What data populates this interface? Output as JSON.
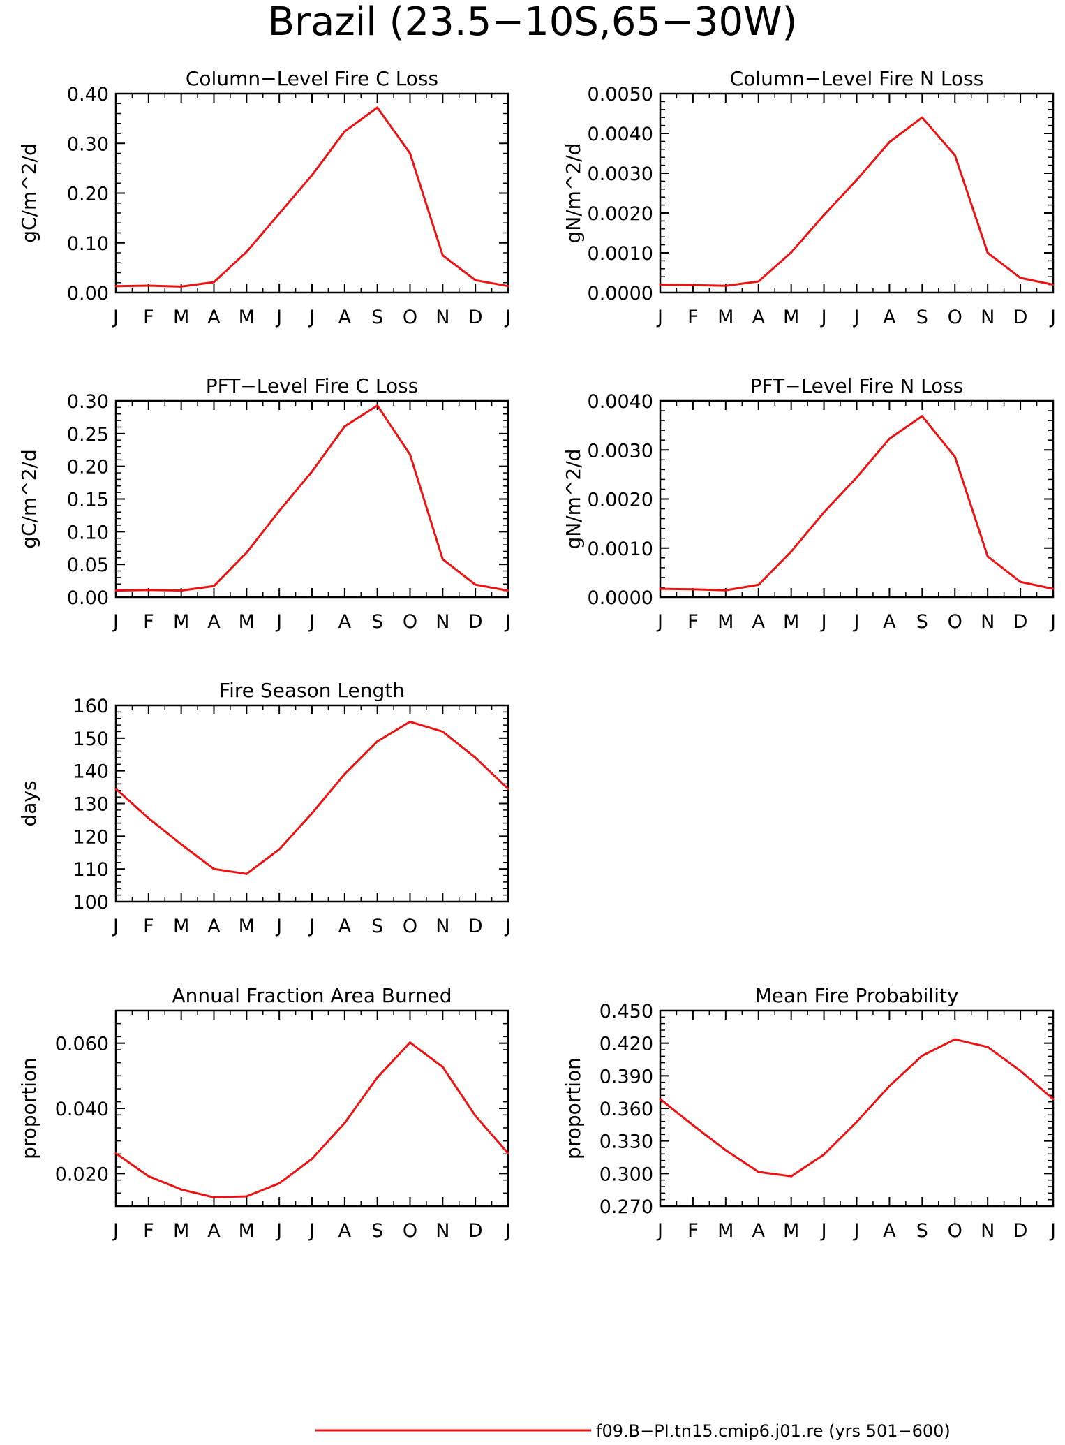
{
  "page_title": "Brazil (23.5−10S,65−30W)",
  "legend": {
    "label": "f09.B−PI.tn15.cmip6.j01.re (yrs 501−600)",
    "color": "#ee1111"
  },
  "chart_data": [
    {
      "type": "line",
      "title": "Column−Level Fire C Loss",
      "ylabel": "gC/m^2/d",
      "ylim": [
        0,
        0.4
      ],
      "yticks": [
        0,
        0.1,
        0.2,
        0.3,
        0.4
      ],
      "ytick_labels": [
        "0.00",
        "0.10",
        "0.20",
        "0.30",
        "0.40"
      ],
      "categories": [
        "J",
        "F",
        "M",
        "A",
        "M",
        "J",
        "J",
        "A",
        "S",
        "O",
        "N",
        "D",
        "J"
      ],
      "values": [
        0.013,
        0.014,
        0.012,
        0.021,
        0.082,
        0.159,
        0.236,
        0.324,
        0.372,
        0.28,
        0.075,
        0.025,
        0.013
      ]
    },
    {
      "type": "line",
      "title": "Column−Level Fire N Loss",
      "ylabel": "gN/m^2/d",
      "ylim": [
        0,
        0.005
      ],
      "yticks": [
        0,
        0.001,
        0.002,
        0.003,
        0.004,
        0.005
      ],
      "ytick_labels": [
        "0.0000",
        "0.0010",
        "0.0020",
        "0.0030",
        "0.0040",
        "0.0050"
      ],
      "categories": [
        "J",
        "F",
        "M",
        "A",
        "M",
        "J",
        "J",
        "A",
        "S",
        "O",
        "N",
        "D",
        "J"
      ],
      "values": [
        0.0002,
        0.00019,
        0.00017,
        0.00028,
        0.00101,
        0.00195,
        0.00283,
        0.00378,
        0.0044,
        0.00345,
        0.001,
        0.00037,
        0.0002
      ]
    },
    {
      "type": "line",
      "title": "PFT−Level Fire C Loss",
      "ylabel": "gC/m^2/d",
      "ylim": [
        0,
        0.3
      ],
      "yticks": [
        0,
        0.05,
        0.1,
        0.15,
        0.2,
        0.25,
        0.3
      ],
      "ytick_labels": [
        "0.00",
        "0.05",
        "0.10",
        "0.15",
        "0.20",
        "0.25",
        "0.30"
      ],
      "categories": [
        "J",
        "F",
        "M",
        "A",
        "M",
        "J",
        "J",
        "A",
        "S",
        "O",
        "N",
        "D",
        "J"
      ],
      "values": [
        0.01,
        0.011,
        0.01,
        0.017,
        0.068,
        0.132,
        0.192,
        0.261,
        0.293,
        0.218,
        0.058,
        0.019,
        0.01
      ]
    },
    {
      "type": "line",
      "title": "PFT−Level Fire N Loss",
      "ylabel": "gN/m^2/d",
      "ylim": [
        0,
        0.004
      ],
      "yticks": [
        0,
        0.001,
        0.002,
        0.003,
        0.004
      ],
      "ytick_labels": [
        "0.0000",
        "0.0010",
        "0.0020",
        "0.0030",
        "0.0040"
      ],
      "categories": [
        "J",
        "F",
        "M",
        "A",
        "M",
        "J",
        "J",
        "A",
        "S",
        "O",
        "N",
        "D",
        "J"
      ],
      "values": [
        0.00017,
        0.00016,
        0.00014,
        0.00025,
        0.00093,
        0.00173,
        0.00244,
        0.00323,
        0.00369,
        0.00286,
        0.00083,
        0.00031,
        0.00017
      ]
    },
    {
      "type": "line",
      "title": "Fire Season Length",
      "ylabel": "days",
      "ylim": [
        100,
        160
      ],
      "yticks": [
        100,
        110,
        120,
        130,
        140,
        150,
        160
      ],
      "ytick_labels": [
        "100",
        "110",
        "120",
        "130",
        "140",
        "150",
        "160"
      ],
      "categories": [
        "J",
        "F",
        "M",
        "A",
        "M",
        "J",
        "J",
        "A",
        "S",
        "O",
        "N",
        "D",
        "J"
      ],
      "values": [
        134.5,
        125.5,
        117.5,
        110,
        108.5,
        116,
        127,
        139,
        149,
        155,
        152,
        144,
        134.5
      ]
    },
    {
      "type": "line",
      "title": "Annual Fraction Area Burned",
      "ylabel": "proportion",
      "ylim": [
        0.01,
        0.07
      ],
      "yticks": [
        0.02,
        0.04,
        0.06
      ],
      "ytick_labels": [
        "0.020",
        "0.040",
        "0.060"
      ],
      "categories": [
        "J",
        "F",
        "M",
        "A",
        "M",
        "J",
        "J",
        "A",
        "S",
        "O",
        "N",
        "D",
        "J"
      ],
      "values": [
        0.0262,
        0.0192,
        0.0151,
        0.0127,
        0.013,
        0.017,
        0.0245,
        0.0355,
        0.0495,
        0.0602,
        0.0527,
        0.0377,
        0.0262
      ]
    },
    {
      "type": "line",
      "title": "Mean Fire Probability",
      "ylabel": "proportion",
      "ylim": [
        0.27,
        0.45
      ],
      "yticks": [
        0.27,
        0.3,
        0.33,
        0.36,
        0.39,
        0.42,
        0.45
      ],
      "ytick_labels": [
        "0.270",
        "0.300",
        "0.330",
        "0.360",
        "0.390",
        "0.420",
        "0.450"
      ],
      "categories": [
        "J",
        "F",
        "M",
        "A",
        "M",
        "J",
        "J",
        "A",
        "S",
        "O",
        "N",
        "D",
        "J"
      ],
      "values": [
        0.3685,
        0.3445,
        0.3215,
        0.3015,
        0.2975,
        0.3175,
        0.3475,
        0.3805,
        0.4085,
        0.4235,
        0.4165,
        0.3945,
        0.3685
      ]
    }
  ]
}
